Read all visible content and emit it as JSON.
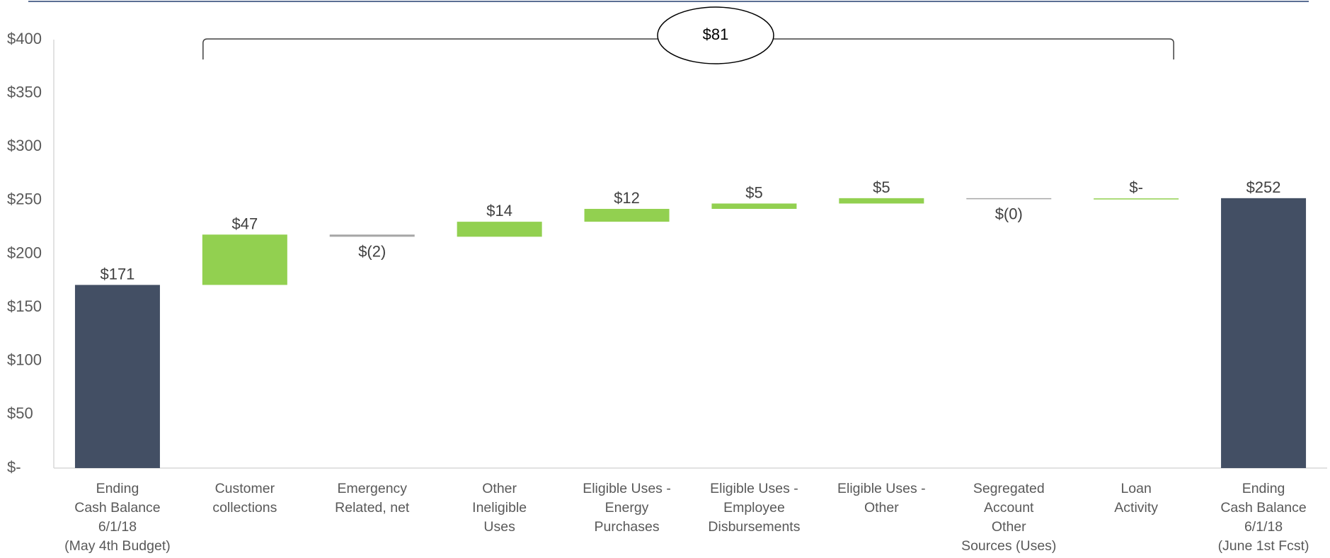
{
  "colors": {
    "total": "#434F64",
    "increase": "#92D050",
    "decrease": "#A6A6A6",
    "top_rule": "#5B6F94",
    "axis": "#D9D9D9",
    "text": "#595959",
    "label": "#404040",
    "bracket": "#404040"
  },
  "chart_data": {
    "type": "waterfall",
    "title": "",
    "xlabel": "",
    "ylabel": "",
    "ylim": [
      0,
      400
    ],
    "y_ticks": [
      0,
      50,
      100,
      150,
      200,
      250,
      300,
      350,
      400
    ],
    "y_tick_labels": [
      "$-",
      "$50",
      "$100",
      "$150",
      "$200",
      "$250",
      "$300",
      "$350",
      "$400"
    ],
    "grid": false,
    "legend": "none",
    "steps": [
      {
        "category": [
          "Ending",
          "Cash Balance",
          "6/1/18",
          "(May 4th Budget)"
        ],
        "kind": "total",
        "value": 171,
        "label": "$171"
      },
      {
        "category": [
          "Customer",
          "collections"
        ],
        "kind": "delta",
        "value": 47,
        "label": "$47"
      },
      {
        "category": [
          "Emergency",
          "Related, net"
        ],
        "kind": "delta",
        "value": -2,
        "label": "$(2)"
      },
      {
        "category": [
          "Other",
          "Ineligible",
          "Uses"
        ],
        "kind": "delta",
        "value": 14,
        "label": "$14"
      },
      {
        "category": [
          "Eligible Uses -",
          "Energy",
          "Purchases"
        ],
        "kind": "delta",
        "value": 12,
        "label": "$12"
      },
      {
        "category": [
          "Eligible Uses -",
          "Employee",
          "Disbursements"
        ],
        "kind": "delta",
        "value": 5,
        "label": "$5"
      },
      {
        "category": [
          "Eligible Uses -",
          "Other"
        ],
        "kind": "delta",
        "value": 5,
        "label": "$5"
      },
      {
        "category": [
          "Segregated",
          "Account",
          "Other",
          "Sources (Uses)"
        ],
        "kind": "delta",
        "value": -0.2,
        "label": "$(0)"
      },
      {
        "category": [
          "Loan",
          "Activity"
        ],
        "kind": "delta",
        "value": 0,
        "label": "$-"
      },
      {
        "category": [
          "Ending",
          "Cash Balance",
          "6/1/18",
          "(June 1st Fcst)"
        ],
        "kind": "total",
        "value": 252,
        "label": "$252"
      }
    ],
    "annotations": [
      {
        "type": "bracket",
        "from_step": 1,
        "to_step": 8,
        "text": "$81"
      }
    ]
  }
}
